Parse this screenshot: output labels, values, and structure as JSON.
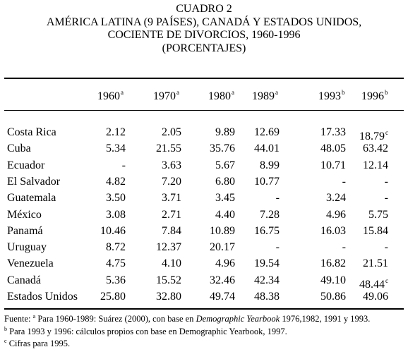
{
  "title": {
    "line1": "CUADRO 2",
    "line2": "AMÉRICA LATINA (9 PAÍSES), CANADÁ Y ESTADOS UNIDOS,",
    "line3": "COCIENTE DE DIVORCIOS, 1960-1996",
    "line4": "(PORCENTAJES)"
  },
  "columns": [
    {
      "label": "1960",
      "sup": "a"
    },
    {
      "label": "1970",
      "sup": "a"
    },
    {
      "label": "1980",
      "sup": "a"
    },
    {
      "label": "1989",
      "sup": "a"
    },
    {
      "label": "1993",
      "sup": "b"
    },
    {
      "label": "1996",
      "sup": "b"
    }
  ],
  "rows": [
    {
      "country": "Costa Rica",
      "values": [
        "2.12",
        "2.05",
        "9.89",
        "12.69",
        "17.33",
        "18.79"
      ],
      "sups": [
        "",
        "",
        "",
        "",
        "",
        "c"
      ]
    },
    {
      "country": "Cuba",
      "values": [
        "5.34",
        "21.55",
        "35.76",
        "44.01",
        "48.05",
        "63.42"
      ],
      "sups": [
        "",
        "",
        "",
        "",
        "",
        ""
      ]
    },
    {
      "country": "Ecuador",
      "values": [
        "-",
        "3.63",
        "5.67",
        "8.99",
        "10.71",
        "12.14"
      ],
      "sups": [
        "",
        "",
        "",
        "",
        "",
        ""
      ]
    },
    {
      "country": "El Salvador",
      "values": [
        "4.82",
        "7.20",
        "6.80",
        "10.77",
        "-",
        "-"
      ],
      "sups": [
        "",
        "",
        "",
        "",
        "",
        ""
      ]
    },
    {
      "country": "Guatemala",
      "values": [
        "3.50",
        "3.71",
        "3.45",
        "-",
        "3.24",
        "-"
      ],
      "sups": [
        "",
        "",
        "",
        "",
        "",
        ""
      ]
    },
    {
      "country": "México",
      "values": [
        "3.08",
        "2.71",
        "4.40",
        "7.28",
        "4.96",
        "5.75"
      ],
      "sups": [
        "",
        "",
        "",
        "",
        "",
        ""
      ]
    },
    {
      "country": "Panamá",
      "values": [
        "10.46",
        "7.84",
        "10.89",
        "16.75",
        "16.03",
        "15.84"
      ],
      "sups": [
        "",
        "",
        "",
        "",
        "",
        ""
      ]
    },
    {
      "country": "Uruguay",
      "values": [
        "8.72",
        "12.37",
        "20.17",
        "-",
        "-",
        "-"
      ],
      "sups": [
        "",
        "",
        "",
        "",
        "",
        ""
      ]
    },
    {
      "country": "Venezuela",
      "values": [
        "4.75",
        "4.10",
        "4.96",
        "19.54",
        "16.82",
        "21.51"
      ],
      "sups": [
        "",
        "",
        "",
        "",
        "",
        ""
      ]
    },
    {
      "country": "Canadá",
      "values": [
        "5.36",
        "15.52",
        "32.46",
        "42.34",
        "49.10",
        "48.44"
      ],
      "sups": [
        "",
        "",
        "",
        "",
        "",
        "c"
      ]
    },
    {
      "country": "Estados Unidos",
      "values": [
        "25.80",
        "32.80",
        "49.74",
        "48.38",
        "50.86",
        "49.06"
      ],
      "sups": [
        "",
        "",
        "",
        "",
        "",
        ""
      ]
    }
  ],
  "notes": {
    "note_a_mark": "a",
    "note_a_prefix": "Fuente: ",
    "note_a_text1": " Para 1960-1989: Suárez (2000), con base en ",
    "note_a_italic": "Demographic Yearbook",
    "note_a_text2": " 1976,1982, 1991 y 1993.",
    "note_b_mark": "b",
    "note_b_text": " Para 1993 y 1996: cálculos propios con base en Demographic Yearbook, 1997.",
    "note_c_mark": "c",
    "note_c_text": " Cifras para 1995."
  }
}
